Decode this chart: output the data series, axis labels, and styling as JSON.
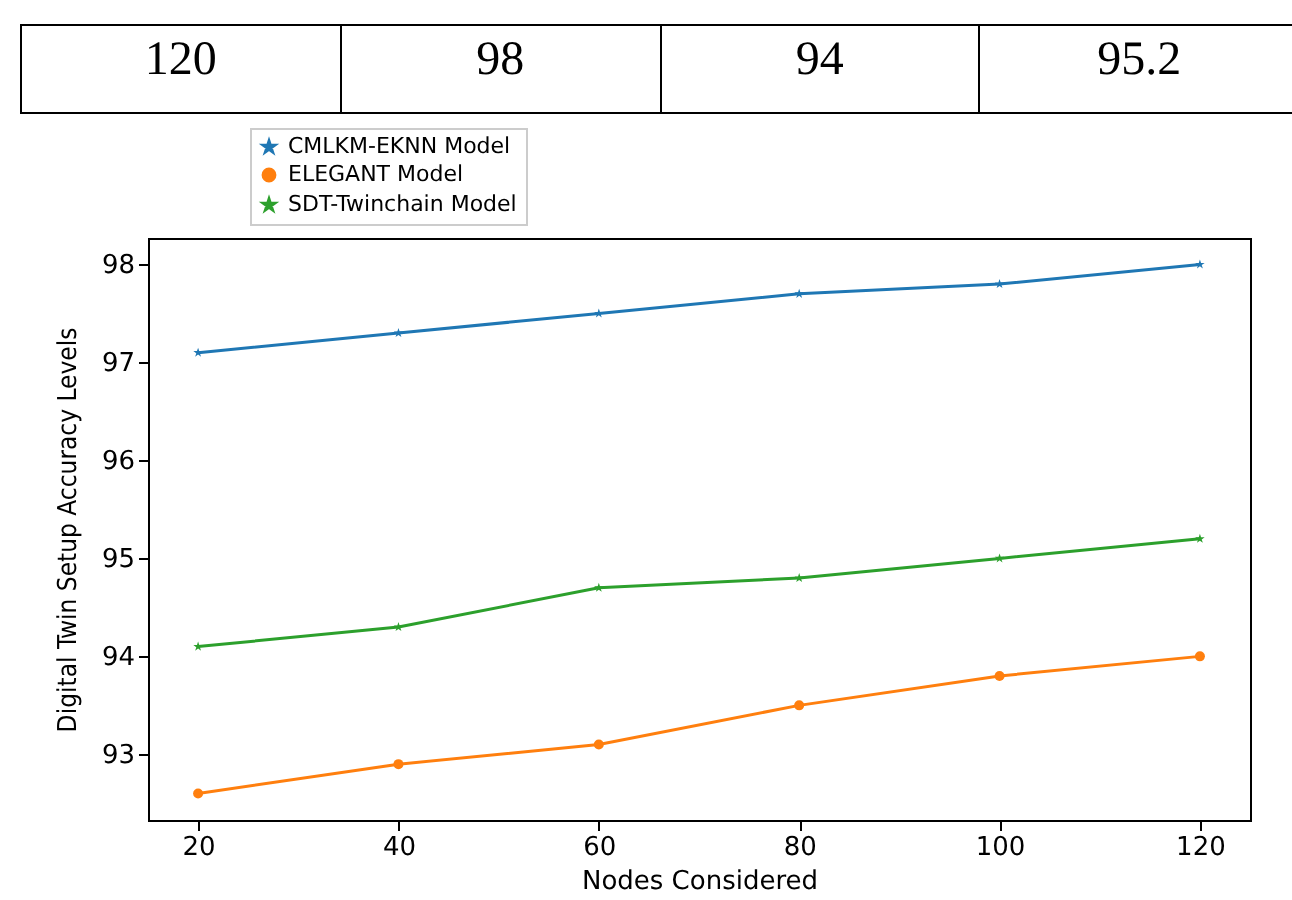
{
  "chart_data": {
    "type": "line",
    "xlabel": "Nodes Considered",
    "ylabel": "Digital Twin Setup Accuracy Levels",
    "x": [
      20,
      40,
      60,
      80,
      100,
      120
    ],
    "series": [
      {
        "name": "CMLKM-EKNN Model",
        "color": "#1f77b4",
        "marker": "star",
        "values": [
          97.1,
          97.3,
          97.5,
          97.7,
          97.8,
          98.0
        ]
      },
      {
        "name": "ELEGANT Model",
        "color": "#ff7f0e",
        "marker": "circle",
        "values": [
          92.6,
          92.9,
          93.1,
          93.5,
          93.8,
          94.0
        ]
      },
      {
        "name": "SDT-Twinchain Model",
        "color": "#2ca02c",
        "marker": "star",
        "values": [
          94.1,
          94.3,
          94.7,
          94.8,
          95.0,
          95.2
        ]
      }
    ],
    "xlim": [
      15,
      125
    ],
    "xticks": [
      20,
      40,
      60,
      80,
      100,
      120
    ],
    "ylim": [
      92.33,
      98.27
    ],
    "yticks": [
      93,
      94,
      95,
      96,
      97,
      98
    ],
    "grid": false,
    "legend": "top left",
    "annotations": [
      "120",
      "98",
      "94",
      "95.2"
    ]
  }
}
